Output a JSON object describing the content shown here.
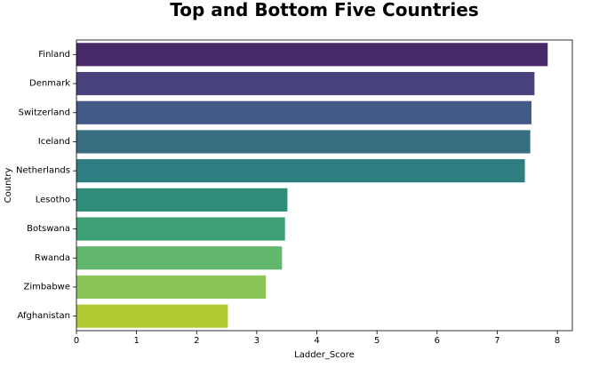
{
  "chart_data": {
    "type": "bar",
    "orientation": "horizontal",
    "title": "Top and Bottom Five Countries",
    "xlabel": "Ladder_Score",
    "ylabel": "Country",
    "xlim": [
      0,
      8.25
    ],
    "xticks": [
      0,
      1,
      2,
      3,
      4,
      5,
      6,
      7,
      8
    ],
    "grid": false,
    "categories": [
      "Finland",
      "Denmark",
      "Switzerland",
      "Iceland",
      "Netherlands",
      "Lesotho",
      "Botswana",
      "Rwanda",
      "Zimbabwe",
      "Afghanistan"
    ],
    "values": [
      7.84,
      7.62,
      7.57,
      7.55,
      7.46,
      3.51,
      3.47,
      3.42,
      3.15,
      2.52
    ],
    "colors": [
      "#482a69",
      "#48427f",
      "#425a85",
      "#376e81",
      "#2e7d80",
      "#2e8c78",
      "#3ea175",
      "#62b76d",
      "#8bc55a",
      "#b3c934"
    ],
    "axis_color": "#000000"
  }
}
